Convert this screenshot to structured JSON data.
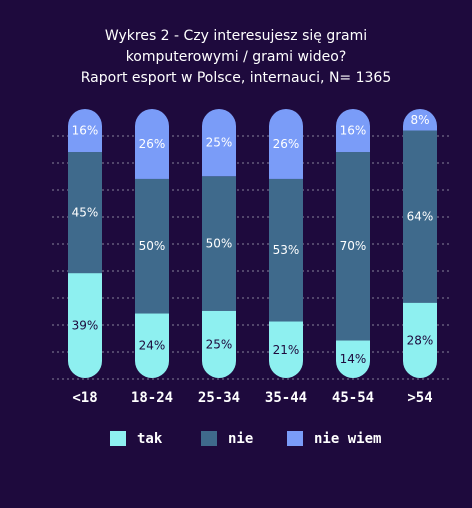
{
  "chart_data": {
    "type": "bar",
    "stacked": true,
    "title_lines": [
      "Wykres 2 - Czy interesujesz się grami",
      "komputerowymi / grami wideo?",
      "Raport esport w Polsce, internauci, N= 1365"
    ],
    "categories": [
      "<18",
      "18-24",
      "25-34",
      "35-44",
      "45-54",
      ">54"
    ],
    "series": [
      {
        "name": "tak",
        "values": [
          39,
          24,
          25,
          21,
          14,
          28
        ],
        "labels": [
          "39%",
          "24%",
          "25%",
          "21%",
          "14%",
          "28%"
        ]
      },
      {
        "name": "nie",
        "values": [
          45,
          50,
          50,
          53,
          70,
          64
        ],
        "labels": [
          "45%",
          "50%",
          "50%",
          "53%",
          "70%",
          "64%"
        ]
      },
      {
        "name": "nie wiem",
        "values": [
          16,
          26,
          25,
          26,
          16,
          8
        ],
        "labels": [
          "16%",
          "26%",
          "25%",
          "26%",
          "16%",
          "8%"
        ]
      }
    ],
    "ylim": [
      0,
      100
    ],
    "grid": true,
    "legend_position": "bottom"
  },
  "colors": {
    "background": "#1e0a3d",
    "tak": "#8ef0f0",
    "nie": "#3f6a8c",
    "nie_wiem": "#7a9cf8",
    "grid": "#a0a0b0"
  }
}
